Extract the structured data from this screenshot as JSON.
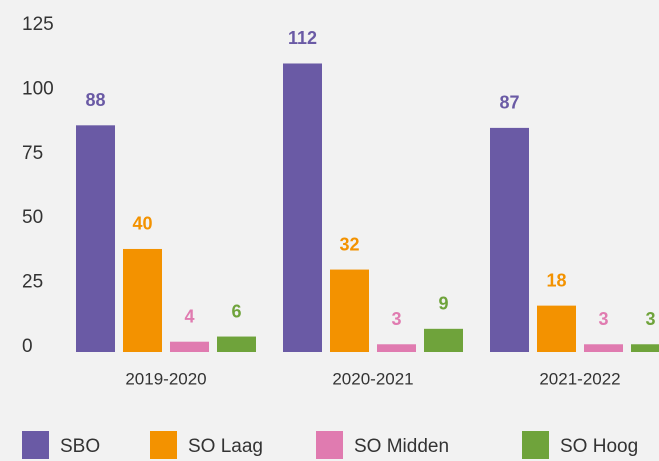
{
  "chart_data": {
    "type": "bar",
    "categories": [
      "2019-2020",
      "2020-2021",
      "2021-2022"
    ],
    "series": [
      {
        "name": "SBO",
        "color": "#6a5aa5",
        "values": [
          88,
          112,
          87
        ]
      },
      {
        "name": "SO Laag",
        "color": "#f39200",
        "values": [
          40,
          32,
          18
        ]
      },
      {
        "name": "SO Midden",
        "color": "#e07bb0",
        "values": [
          4,
          3,
          3
        ]
      },
      {
        "name": "SO Hoog",
        "color": "#6fa33b",
        "values": [
          6,
          9,
          3
        ]
      }
    ],
    "ylim": [
      0,
      125
    ],
    "yticks": [
      0,
      25,
      50,
      75,
      100,
      125
    ],
    "grid": false,
    "legend": "bottom"
  }
}
